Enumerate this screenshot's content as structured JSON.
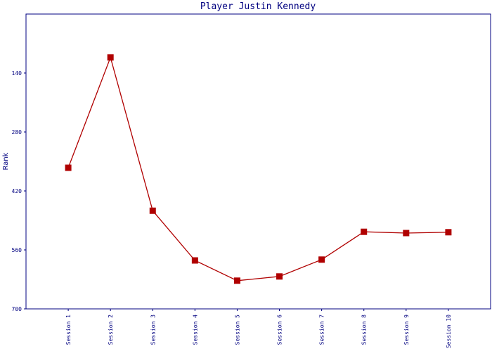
{
  "chart_data": {
    "type": "line",
    "title": "Player Justin Kennedy",
    "y_label": "Rank",
    "categories": [
      "Session 1",
      "Session 2",
      "Session 3",
      "Session 4",
      "Session 5",
      "Session 6",
      "Session 7",
      "Session 8",
      "Session 9",
      "Session 10"
    ],
    "series": [
      {
        "name": "Rank",
        "color": "#b00000",
        "values": [
          365,
          103,
          467,
          585,
          633,
          623,
          583,
          517,
          520,
          518
        ]
      }
    ],
    "ylim": [
      700,
      0
    ],
    "yticks": [
      140,
      280,
      420,
      560,
      700
    ],
    "grid": false
  }
}
